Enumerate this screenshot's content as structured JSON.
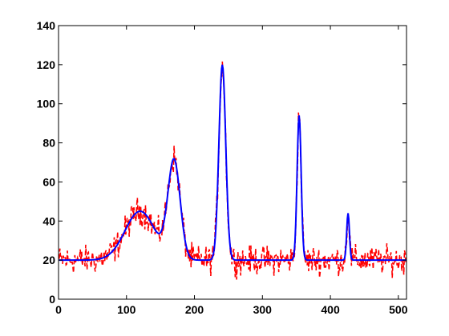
{
  "chart_data": {
    "type": "line",
    "title": "",
    "xlabel": "",
    "ylabel": "",
    "xlim": [
      0,
      512
    ],
    "ylim": [
      0,
      140
    ],
    "xticks": [
      0,
      100,
      200,
      300,
      400,
      500
    ],
    "yticks": [
      0,
      20,
      40,
      60,
      80,
      100,
      120,
      140
    ],
    "grid": false,
    "legend": "none",
    "baseline": 20,
    "peaks": [
      {
        "center": 120,
        "height": 25,
        "width": 22
      },
      {
        "center": 170,
        "height": 50,
        "width": 9
      },
      {
        "center": 241,
        "height": 100,
        "width": 5
      },
      {
        "center": 354,
        "height": 74,
        "width": 3
      },
      {
        "center": 426,
        "height": 24,
        "width": 2
      }
    ],
    "series": [
      {
        "color": "#0000ff",
        "style": "solid",
        "kind": "fit"
      },
      {
        "color": "#ff0000",
        "style": "dashed",
        "kind": "noisy",
        "noise_amplitude": 5
      }
    ]
  }
}
